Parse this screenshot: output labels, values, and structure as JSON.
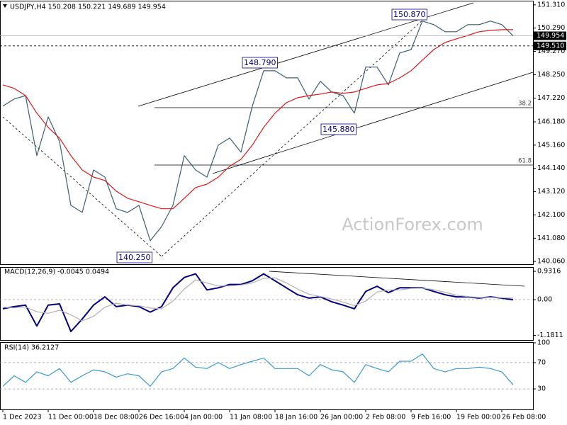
{
  "chart_data": [
    {
      "type": "line",
      "title": "USDJPY,H4  150.208 150.221 149.689 149.954",
      "ylim": [
        139.94,
        151.46
      ],
      "yticks": [
        {
          "value": 151.31,
          "label": "151.310"
        },
        {
          "value": 150.29,
          "label": "150.290"
        },
        {
          "value": 149.27,
          "label": "149.270"
        },
        {
          "value": 148.25,
          "label": "148.250"
        },
        {
          "value": 147.22,
          "label": "147.220"
        },
        {
          "value": 146.18,
          "label": "146.180"
        },
        {
          "value": 145.16,
          "label": "145.160"
        },
        {
          "value": 144.14,
          "label": "144.140"
        },
        {
          "value": 143.12,
          "label": "143.120"
        },
        {
          "value": 142.1,
          "label": "142.100"
        },
        {
          "value": 141.08,
          "label": "141.080"
        },
        {
          "value": 140.06,
          "label": "140.060"
        }
      ],
      "price_tags": [
        {
          "value": 149.954,
          "label": "149.954"
        },
        {
          "value": 149.51,
          "label": "149.510"
        }
      ],
      "annotations": [
        "150.870",
        "148.790",
        "145.880",
        "140.250",
        "38.2",
        "61.8"
      ],
      "watermark": "ActionForex.com",
      "series": [
        {
          "color": "#3c5f6e",
          "values": [
            146.87,
            147.18,
            147.33,
            144.7,
            146.4,
            145.32,
            142.52,
            142.21,
            144.07,
            143.76,
            142.37,
            142.21,
            142.52,
            140.97,
            141.59,
            142.52,
            144.7,
            144.07,
            143.76,
            145.16,
            145.47,
            144.85,
            146.87,
            148.42,
            148.42,
            148.11,
            148.11,
            147.18,
            147.96,
            147.49,
            147.33,
            146.56,
            148.58,
            148.58,
            147.8,
            149.2,
            149.35,
            150.6,
            150.44,
            150.13,
            150.13,
            150.44,
            150.44,
            150.6,
            150.44,
            149.95
          ]
        },
        {
          "color": "#e01818",
          "values": [
            147.8,
            147.65,
            147.33,
            146.56,
            145.94,
            145.47,
            144.7,
            144.07,
            143.76,
            143.61,
            143.14,
            142.83,
            142.68,
            142.52,
            142.37,
            142.37,
            142.83,
            143.3,
            143.45,
            143.76,
            144.23,
            144.54,
            145.16,
            145.94,
            146.56,
            147.02,
            147.24,
            147.33,
            147.4,
            147.49,
            147.43,
            147.49,
            147.65,
            147.8,
            147.86,
            148.11,
            148.42,
            148.89,
            149.35,
            149.66,
            149.82,
            149.97,
            150.13,
            150.19,
            150.22,
            150.22
          ]
        }
      ]
    },
    {
      "type": "line",
      "title": "MACD(12,26,9) -0.0045 0.0494",
      "ylim": [
        -1.33,
        1.05
      ],
      "yticks": [
        0.9316,
        {
          "value": 0,
          "label": "0.00"
        },
        -1.1811
      ],
      "reference_lines": [
        0
      ],
      "series": [
        {
          "color": "#000080",
          "values": [
            -0.3,
            -0.23,
            -0.18,
            -0.87,
            -0.18,
            -0.14,
            -1.05,
            -0.64,
            -0.18,
            0.09,
            -0.23,
            -0.18,
            -0.23,
            -0.41,
            -0.23,
            0.39,
            0.73,
            0.85,
            0.32,
            0.39,
            0.5,
            0.5,
            0.62,
            0.85,
            0.62,
            0.39,
            0.16,
            0.05,
            0.09,
            -0.07,
            -0.18,
            -0.3,
            0.27,
            0.44,
            0.23,
            0.39,
            0.39,
            0.39,
            0.27,
            0.16,
            0.09,
            0.09,
            0.05,
            0.09,
            0.05,
            -0.0045
          ]
        },
        {
          "color": "#b0b0b0",
          "values": [
            -0.25,
            -0.27,
            -0.24,
            -0.4,
            -0.45,
            -0.35,
            -0.5,
            -0.7,
            -0.55,
            -0.25,
            -0.12,
            -0.18,
            -0.2,
            -0.28,
            -0.3,
            -0.05,
            0.35,
            0.65,
            0.55,
            0.45,
            0.45,
            0.48,
            0.55,
            0.7,
            0.72,
            0.55,
            0.35,
            0.18,
            0.1,
            0.02,
            -0.08,
            -0.2,
            -0.05,
            0.25,
            0.32,
            0.32,
            0.37,
            0.38,
            0.33,
            0.24,
            0.15,
            0.1,
            0.07,
            0.07,
            0.06,
            0.0494
          ]
        }
      ]
    },
    {
      "type": "line",
      "title": "RSI(14) 36.2127",
      "ylim": [
        0,
        100
      ],
      "yticks": [
        100,
        70,
        30
      ],
      "reference_lines": [
        70,
        30
      ],
      "categories": [
        "1 Dec 2023",
        null,
        null,
        null,
        "11 Dec 00:00",
        null,
        null,
        null,
        "18 Dec 08:00",
        null,
        null,
        null,
        "26 Dec 16:00",
        null,
        null,
        null,
        "4 Jan 00:00",
        null,
        null,
        null,
        "11 Jan 08:00",
        null,
        null,
        null,
        "18 Jan 16:00",
        null,
        null,
        null,
        "26 Jan 00:00",
        null,
        null,
        null,
        "2 Feb 08:00",
        null,
        null,
        null,
        "9 Feb 16:00",
        null,
        null,
        null,
        "19 Feb 00:00",
        null,
        null,
        null,
        "26 Feb 08:00",
        null
      ],
      "series": [
        {
          "color": "#3a9ad0",
          "values": [
            34,
            50,
            40,
            56,
            50,
            61,
            40,
            50,
            59,
            56,
            48,
            53,
            50,
            34,
            56,
            61,
            77,
            63,
            61,
            70,
            61,
            67,
            72,
            77,
            61,
            61,
            61,
            50,
            67,
            59,
            56,
            40,
            67,
            61,
            56,
            72,
            72,
            83,
            61,
            56,
            61,
            61,
            63,
            61,
            56,
            36.2127
          ]
        }
      ]
    }
  ]
}
